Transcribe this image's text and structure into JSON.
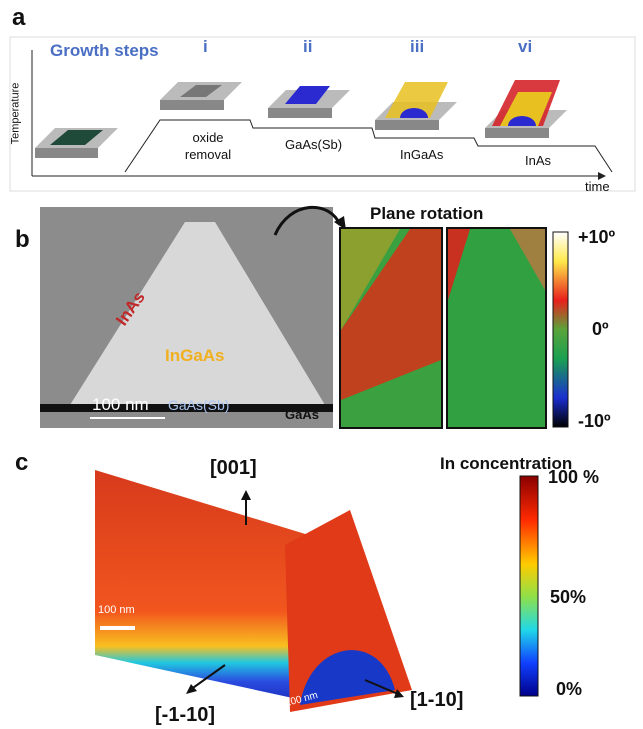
{
  "panel_a": {
    "label": "a",
    "title": "Growth steps",
    "steps": [
      "i",
      "ii",
      "iii",
      "vi"
    ],
    "y_axis": "Temperature",
    "x_axis": "time",
    "stages": [
      "oxide removal",
      "GaAs(Sb)",
      "InGaAs",
      "InAs"
    ]
  },
  "panel_b": {
    "label": "b",
    "title": "Plane rotation",
    "image_labels": [
      "InAs",
      "InGaAs",
      "100 nm",
      "GaAs(Sb)",
      "GaAs"
    ],
    "colorbar_labels": [
      "+10º",
      "0º",
      "-10º"
    ]
  },
  "panel_c": {
    "label": "c",
    "title": "In concentration",
    "directions": [
      "[001]",
      "[-1-10]",
      "[1-10]"
    ],
    "scale_bars": [
      "100 nm",
      "100 nm"
    ],
    "colorbar_labels": [
      "100 %",
      "50%",
      "0%"
    ]
  }
}
